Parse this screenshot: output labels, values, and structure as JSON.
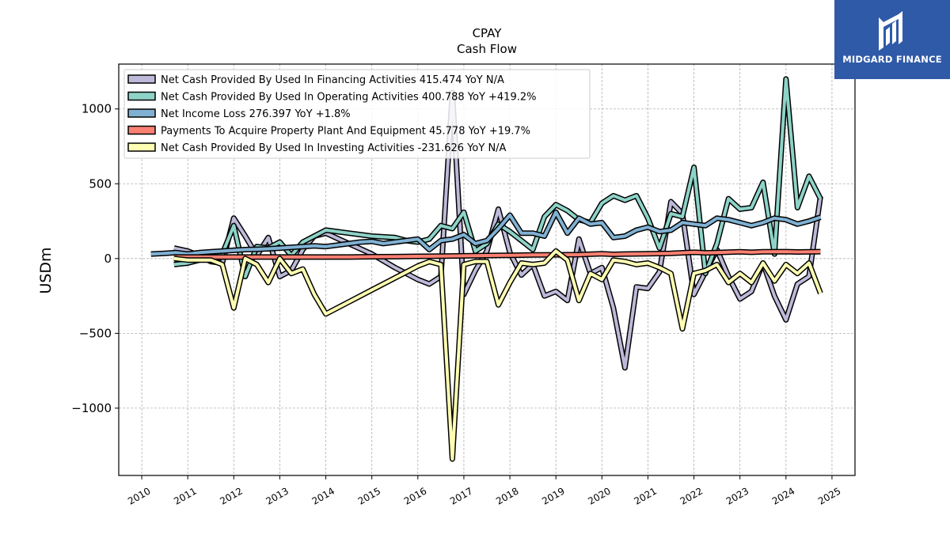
{
  "brand": {
    "name": "MIDGARD FINANCE",
    "color": "#2f5aa8"
  },
  "chart_data": {
    "type": "line",
    "title": "CPAY",
    "subtitle": "Cash Flow",
    "ylabel": "USDm",
    "xlabel": "",
    "xlim": [
      2009.5,
      2025.5
    ],
    "ylim": [
      -1450,
      1300
    ],
    "yticks": [
      1000,
      500,
      0,
      -500,
      -1000
    ],
    "ytick_labels": [
      "1000",
      "500",
      "0",
      "−500",
      "−1000"
    ],
    "xticks": [
      2010,
      2011,
      2012,
      2013,
      2014,
      2015,
      2016,
      2017,
      2018,
      2019,
      2020,
      2021,
      2022,
      2023,
      2024,
      2025
    ],
    "xtick_labels": [
      "2010",
      "2011",
      "2012",
      "2013",
      "2014",
      "2015",
      "2016",
      "2017",
      "2018",
      "2019",
      "2020",
      "2021",
      "2022",
      "2023",
      "2024",
      "2025"
    ],
    "grid": true,
    "legend_position": "top-left",
    "series": [
      {
        "name": "Net Cash Provided By Used In Financing Activities",
        "legend": "Net Cash Provided By Used In Financing Activities  415.474 YoY N/A",
        "color": "#bcb9d9",
        "points": [
          [
            2010.7,
            70
          ],
          [
            2011.0,
            50
          ],
          [
            2011.25,
            20
          ],
          [
            2011.5,
            -20
          ],
          [
            2011.75,
            -30
          ],
          [
            2012.0,
            270
          ],
          [
            2012.25,
            150
          ],
          [
            2012.5,
            20
          ],
          [
            2012.75,
            140
          ],
          [
            2013.0,
            -120
          ],
          [
            2013.25,
            -80
          ],
          [
            2013.5,
            60
          ],
          [
            2013.75,
            150
          ],
          [
            2014.0,
            170
          ],
          [
            2014.5,
            100
          ],
          [
            2015.0,
            30
          ],
          [
            2015.5,
            -60
          ],
          [
            2015.75,
            -100
          ],
          [
            2016.0,
            -140
          ],
          [
            2016.25,
            -170
          ],
          [
            2016.5,
            -120
          ],
          [
            2016.75,
            1110
          ],
          [
            2017.0,
            -240
          ],
          [
            2017.25,
            -80
          ],
          [
            2017.5,
            50
          ],
          [
            2017.75,
            330
          ],
          [
            2018.0,
            40
          ],
          [
            2018.25,
            -110
          ],
          [
            2018.5,
            -40
          ],
          [
            2018.75,
            -250
          ],
          [
            2019.0,
            -220
          ],
          [
            2019.25,
            -280
          ],
          [
            2019.5,
            130
          ],
          [
            2019.75,
            -100
          ],
          [
            2020.0,
            -60
          ],
          [
            2020.25,
            -330
          ],
          [
            2020.5,
            -730
          ],
          [
            2020.75,
            -190
          ],
          [
            2021.0,
            -200
          ],
          [
            2021.25,
            -90
          ],
          [
            2021.5,
            380
          ],
          [
            2021.75,
            300
          ],
          [
            2022.0,
            -240
          ],
          [
            2022.25,
            -90
          ],
          [
            2022.5,
            60
          ],
          [
            2022.75,
            -120
          ],
          [
            2023.0,
            -270
          ],
          [
            2023.25,
            -220
          ],
          [
            2023.5,
            -30
          ],
          [
            2023.75,
            -250
          ],
          [
            2024.0,
            -410
          ],
          [
            2024.25,
            -170
          ],
          [
            2024.5,
            -120
          ],
          [
            2024.75,
            415
          ]
        ]
      },
      {
        "name": "Net Cash Provided By Used In Operating Activities",
        "legend": "Net Cash Provided By Used In Operating Activities  400.788 YoY +419.2%",
        "color": "#8dd3c7",
        "points": [
          [
            2010.7,
            -40
          ],
          [
            2011.0,
            -30
          ],
          [
            2011.25,
            -10
          ],
          [
            2011.5,
            10
          ],
          [
            2011.75,
            30
          ],
          [
            2012.0,
            220
          ],
          [
            2012.25,
            -120
          ],
          [
            2012.5,
            80
          ],
          [
            2012.75,
            70
          ],
          [
            2013.0,
            110
          ],
          [
            2013.25,
            20
          ],
          [
            2013.5,
            110
          ],
          [
            2013.75,
            150
          ],
          [
            2014.0,
            190
          ],
          [
            2014.5,
            170
          ],
          [
            2015.0,
            150
          ],
          [
            2015.5,
            140
          ],
          [
            2015.75,
            120
          ],
          [
            2016.0,
            110
          ],
          [
            2016.25,
            130
          ],
          [
            2016.5,
            220
          ],
          [
            2016.75,
            200
          ],
          [
            2017.0,
            310
          ],
          [
            2017.25,
            50
          ],
          [
            2017.5,
            100
          ],
          [
            2017.75,
            230
          ],
          [
            2018.0,
            180
          ],
          [
            2018.25,
            120
          ],
          [
            2018.5,
            60
          ],
          [
            2018.75,
            280
          ],
          [
            2019.0,
            360
          ],
          [
            2019.25,
            320
          ],
          [
            2019.5,
            260
          ],
          [
            2019.75,
            240
          ],
          [
            2020.0,
            370
          ],
          [
            2020.25,
            420
          ],
          [
            2020.5,
            390
          ],
          [
            2020.75,
            420
          ],
          [
            2021.0,
            270
          ],
          [
            2021.25,
            70
          ],
          [
            2021.5,
            300
          ],
          [
            2021.75,
            280
          ],
          [
            2022.0,
            610
          ],
          [
            2022.25,
            -100
          ],
          [
            2022.5,
            100
          ],
          [
            2022.75,
            400
          ],
          [
            2023.0,
            330
          ],
          [
            2023.25,
            340
          ],
          [
            2023.5,
            510
          ],
          [
            2023.75,
            30
          ],
          [
            2024.0,
            1200
          ],
          [
            2024.25,
            340
          ],
          [
            2024.5,
            550
          ],
          [
            2024.75,
            400
          ]
        ]
      },
      {
        "name": "Net Income Loss",
        "legend": "Net Income Loss  276.397 YoY +1.8%",
        "color": "#80b1d3",
        "points": [
          [
            2010.2,
            30
          ],
          [
            2010.5,
            35
          ],
          [
            2010.75,
            40
          ],
          [
            2011.0,
            30
          ],
          [
            2011.25,
            40
          ],
          [
            2011.5,
            45
          ],
          [
            2011.75,
            50
          ],
          [
            2012.0,
            55
          ],
          [
            2012.25,
            60
          ],
          [
            2012.5,
            62
          ],
          [
            2012.75,
            65
          ],
          [
            2013.0,
            70
          ],
          [
            2013.25,
            75
          ],
          [
            2013.5,
            80
          ],
          [
            2013.75,
            85
          ],
          [
            2014.0,
            80
          ],
          [
            2014.25,
            90
          ],
          [
            2014.5,
            100
          ],
          [
            2014.75,
            110
          ],
          [
            2015.0,
            115
          ],
          [
            2015.25,
            100
          ],
          [
            2015.5,
            110
          ],
          [
            2015.75,
            120
          ],
          [
            2016.0,
            130
          ],
          [
            2016.25,
            60
          ],
          [
            2016.5,
            120
          ],
          [
            2016.75,
            130
          ],
          [
            2017.0,
            160
          ],
          [
            2017.25,
            100
          ],
          [
            2017.5,
            120
          ],
          [
            2017.75,
            200
          ],
          [
            2018.0,
            290
          ],
          [
            2018.25,
            170
          ],
          [
            2018.5,
            170
          ],
          [
            2018.75,
            150
          ],
          [
            2019.0,
            310
          ],
          [
            2019.25,
            170
          ],
          [
            2019.5,
            270
          ],
          [
            2019.75,
            230
          ],
          [
            2020.0,
            240
          ],
          [
            2020.25,
            140
          ],
          [
            2020.5,
            150
          ],
          [
            2020.75,
            190
          ],
          [
            2021.0,
            210
          ],
          [
            2021.25,
            180
          ],
          [
            2021.5,
            190
          ],
          [
            2021.75,
            240
          ],
          [
            2022.0,
            230
          ],
          [
            2022.25,
            220
          ],
          [
            2022.5,
            270
          ],
          [
            2022.75,
            260
          ],
          [
            2023.0,
            240
          ],
          [
            2023.25,
            220
          ],
          [
            2023.5,
            240
          ],
          [
            2023.75,
            270
          ],
          [
            2024.0,
            260
          ],
          [
            2024.25,
            230
          ],
          [
            2024.5,
            250
          ],
          [
            2024.75,
            276
          ]
        ]
      },
      {
        "name": "Payments To Acquire Property Plant And Equipment",
        "legend": "Payments To Acquire Property Plant And Equipment  45.778 YoY +19.7%",
        "color": "#fb8072",
        "points": [
          [
            2010.7,
            10
          ],
          [
            2011.0,
            10
          ],
          [
            2011.5,
            10
          ],
          [
            2012.0,
            10
          ],
          [
            2012.5,
            10
          ],
          [
            2013.0,
            10
          ],
          [
            2013.5,
            10
          ],
          [
            2014.0,
            10
          ],
          [
            2014.5,
            10
          ],
          [
            2015.0,
            12
          ],
          [
            2015.5,
            13
          ],
          [
            2016.0,
            15
          ],
          [
            2016.5,
            16
          ],
          [
            2017.0,
            18
          ],
          [
            2017.5,
            20
          ],
          [
            2018.0,
            22
          ],
          [
            2018.5,
            24
          ],
          [
            2019.0,
            25
          ],
          [
            2019.5,
            26
          ],
          [
            2020.0,
            32
          ],
          [
            2020.25,
            28
          ],
          [
            2020.5,
            30
          ],
          [
            2021.0,
            32
          ],
          [
            2021.5,
            35
          ],
          [
            2022.0,
            42
          ],
          [
            2022.25,
            38
          ],
          [
            2022.5,
            40
          ],
          [
            2023.0,
            45
          ],
          [
            2023.25,
            42
          ],
          [
            2023.5,
            45
          ],
          [
            2024.0,
            46
          ],
          [
            2024.25,
            44
          ],
          [
            2024.75,
            46
          ]
        ]
      },
      {
        "name": "Net Cash Provided By Used In Investing Activities",
        "legend": "Net Cash Provided By Used In Investing Activities  -231.626 YoY N/A",
        "color": "#ffffb3",
        "points": [
          [
            2010.7,
            0
          ],
          [
            2011.0,
            -10
          ],
          [
            2011.25,
            -10
          ],
          [
            2011.5,
            -10
          ],
          [
            2011.75,
            -40
          ],
          [
            2012.0,
            -330
          ],
          [
            2012.25,
            0
          ],
          [
            2012.5,
            -40
          ],
          [
            2012.75,
            -160
          ],
          [
            2013.0,
            0
          ],
          [
            2013.25,
            -100
          ],
          [
            2013.5,
            -70
          ],
          [
            2013.75,
            -240
          ],
          [
            2014.0,
            -370
          ],
          [
            2014.5,
            -290
          ],
          [
            2015.0,
            -210
          ],
          [
            2015.5,
            -130
          ],
          [
            2016.0,
            -50
          ],
          [
            2016.25,
            -20
          ],
          [
            2016.5,
            -40
          ],
          [
            2016.75,
            -1340
          ],
          [
            2017.0,
            -40
          ],
          [
            2017.25,
            -20
          ],
          [
            2017.5,
            -20
          ],
          [
            2017.75,
            -310
          ],
          [
            2018.0,
            -160
          ],
          [
            2018.25,
            -30
          ],
          [
            2018.5,
            -40
          ],
          [
            2018.75,
            -30
          ],
          [
            2019.0,
            50
          ],
          [
            2019.25,
            -10
          ],
          [
            2019.5,
            -280
          ],
          [
            2019.75,
            -100
          ],
          [
            2020.0,
            -140
          ],
          [
            2020.25,
            -10
          ],
          [
            2020.5,
            -20
          ],
          [
            2020.75,
            -40
          ],
          [
            2021.0,
            -30
          ],
          [
            2021.25,
            -60
          ],
          [
            2021.5,
            -100
          ],
          [
            2021.75,
            -470
          ],
          [
            2022.0,
            -100
          ],
          [
            2022.25,
            -80
          ],
          [
            2022.5,
            -40
          ],
          [
            2022.75,
            -160
          ],
          [
            2023.0,
            -100
          ],
          [
            2023.25,
            -160
          ],
          [
            2023.5,
            -30
          ],
          [
            2023.75,
            -150
          ],
          [
            2024.0,
            -40
          ],
          [
            2024.25,
            -100
          ],
          [
            2024.5,
            -30
          ],
          [
            2024.75,
            -232
          ]
        ]
      }
    ]
  }
}
